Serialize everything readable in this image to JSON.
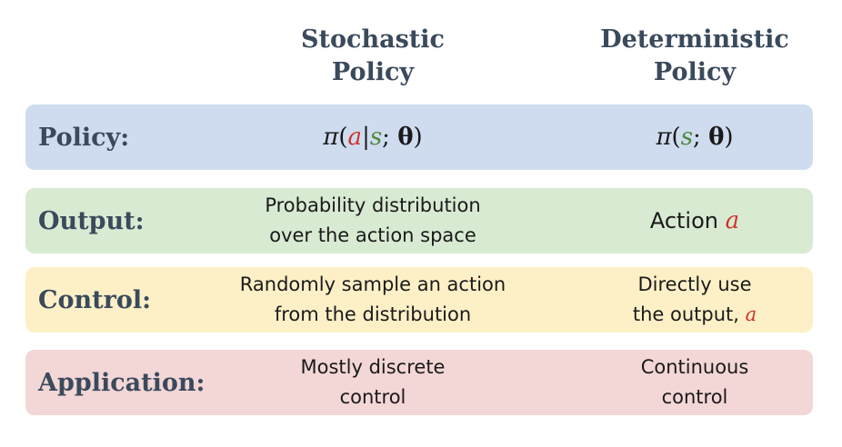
{
  "columns": {
    "stochastic": {
      "line1": "Stochastic",
      "line2": "Policy"
    },
    "deterministic": {
      "line1": "Deterministic",
      "line2": "Policy"
    }
  },
  "rows": {
    "policy": {
      "label": "Policy:",
      "color": "#cfdcef",
      "stochastic_formula": {
        "pi": "π",
        "open": "(",
        "a": "a",
        "bar": "|",
        "s": "s",
        "semi": ";",
        "theta": "θ",
        "close": ")"
      },
      "deterministic_formula": {
        "pi": "π",
        "open": "(",
        "s": "s",
        "semi": ";",
        "theta": "θ",
        "close": ")"
      }
    },
    "output": {
      "label": "Output:",
      "color": "#d8ead2",
      "stochastic": {
        "line1": "Probability distribution",
        "line2": "over the action space"
      },
      "deterministic": {
        "text": "Action",
        "var": "a"
      }
    },
    "control": {
      "label": "Control:",
      "color": "#fdf0c7",
      "stochastic": {
        "line1": "Randomly sample an action",
        "line2": "from the distribution"
      },
      "deterministic": {
        "line1": "Directly use",
        "line2_text": "the output,",
        "var": "a"
      }
    },
    "application": {
      "label": "Application:",
      "color": "#f3d6d6",
      "stochastic": {
        "line1": "Mostly discrete",
        "line2": "control"
      },
      "deterministic": {
        "line1": "Continuous",
        "line2": "control"
      }
    }
  },
  "colors": {
    "header_text": "#3a4a5c",
    "variable_a": "#d0332a",
    "variable_s": "#4f8a3c"
  }
}
